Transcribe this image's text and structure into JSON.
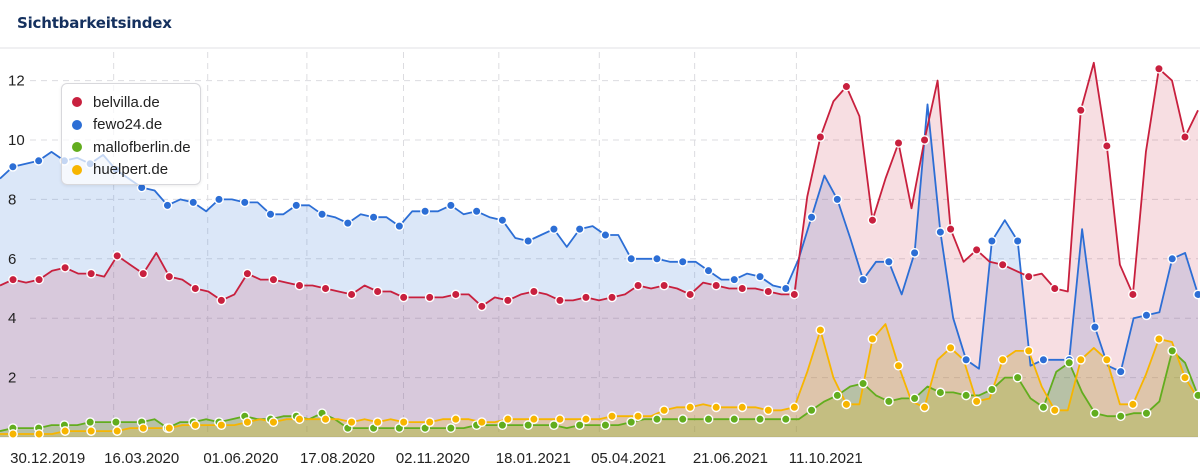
{
  "header": {
    "title": "Sichtbarkeitsindex"
  },
  "legend": {
    "items": [
      {
        "label": "belvilla.de",
        "color": "#c8203e"
      },
      {
        "label": "fewo24.de",
        "color": "#2c6ed5"
      },
      {
        "label": "mallofberlin.de",
        "color": "#62ad1e"
      },
      {
        "label": "huelpert.de",
        "color": "#f7b500"
      }
    ]
  },
  "chart_data": {
    "type": "area",
    "title": "Sichtbarkeitsindex",
    "xlabel": "",
    "ylabel": "",
    "ylim": [
      0,
      12.6
    ],
    "yticks": [
      2,
      4,
      6,
      8,
      10,
      12
    ],
    "x_tick_labels": [
      "30.12.2019",
      "16.03.2020",
      "01.06.2020",
      "17.08.2020",
      "02.11.2020",
      "18.01.2021",
      "05.04.2021",
      "21.06.2021",
      "11.10.2021"
    ],
    "x_tick_index": [
      3.7,
      11.0,
      18.7,
      26.2,
      33.6,
      41.4,
      48.8,
      56.7,
      64.1
    ],
    "grid": true,
    "legend_position": "top-left",
    "series": [
      {
        "name": "fewo24.de",
        "color": "#2c6ed5",
        "values": [
          8.7,
          9.1,
          9.2,
          9.3,
          9.6,
          9.3,
          9.4,
          9.2,
          9.5,
          9.0,
          8.7,
          8.4,
          8.3,
          7.8,
          8.0,
          7.9,
          7.6,
          8.0,
          8.0,
          7.9,
          7.9,
          7.5,
          7.5,
          7.8,
          7.8,
          7.5,
          7.4,
          7.2,
          7.5,
          7.4,
          7.4,
          7.1,
          7.6,
          7.6,
          7.6,
          7.8,
          7.5,
          7.6,
          7.4,
          7.3,
          6.7,
          6.6,
          6.8,
          7.0,
          6.4,
          7.0,
          7.1,
          6.8,
          6.8,
          6.0,
          6.0,
          6.0,
          5.9,
          5.9,
          5.9,
          5.6,
          5.3,
          5.3,
          5.5,
          5.4,
          5.1,
          5.0,
          6.0,
          7.4,
          8.8,
          8.0,
          6.7,
          5.3,
          5.9,
          5.9,
          4.8,
          6.2,
          11.2,
          6.9,
          4.0,
          2.6,
          2.3,
          6.6,
          7.3,
          6.6,
          2.4,
          2.6,
          2.6,
          2.6,
          7.0,
          3.7,
          2.4,
          2.2,
          4.0,
          4.1,
          4.2,
          6.0,
          6.2,
          4.8
        ]
      },
      {
        "name": "belvilla.de",
        "color": "#c8203e",
        "values": [
          5.1,
          5.3,
          5.2,
          5.3,
          5.6,
          5.7,
          5.5,
          5.5,
          5.4,
          6.1,
          5.8,
          5.5,
          6.2,
          5.4,
          5.3,
          5.0,
          4.9,
          4.6,
          4.8,
          5.5,
          5.3,
          5.3,
          5.2,
          5.1,
          5.1,
          5.0,
          4.9,
          4.8,
          5.1,
          4.9,
          4.9,
          4.7,
          4.7,
          4.7,
          4.7,
          4.8,
          4.8,
          4.4,
          4.7,
          4.6,
          4.8,
          4.9,
          4.8,
          4.6,
          4.6,
          4.7,
          4.6,
          4.7,
          4.8,
          5.1,
          5.0,
          5.1,
          5.0,
          4.8,
          5.2,
          5.1,
          5.0,
          5.0,
          5.0,
          4.9,
          4.8,
          4.8,
          8.1,
          10.1,
          11.3,
          11.8,
          10.8,
          7.3,
          8.7,
          9.9,
          7.7,
          10.0,
          12.0,
          7.0,
          5.9,
          6.3,
          5.9,
          5.8,
          5.6,
          5.4,
          5.5,
          5.0,
          4.9,
          11.0,
          12.6,
          9.8,
          5.8,
          4.8,
          9.6,
          12.4,
          12.0,
          10.1,
          11.0
        ]
      },
      {
        "name": "mallofberlin.de",
        "color": "#62ad1e",
        "values": [
          0.2,
          0.3,
          0.3,
          0.3,
          0.4,
          0.4,
          0.4,
          0.5,
          0.5,
          0.5,
          0.5,
          0.5,
          0.6,
          0.3,
          0.5,
          0.5,
          0.6,
          0.5,
          0.6,
          0.7,
          0.6,
          0.6,
          0.7,
          0.7,
          0.6,
          0.8,
          0.6,
          0.3,
          0.3,
          0.3,
          0.3,
          0.3,
          0.3,
          0.3,
          0.3,
          0.3,
          0.3,
          0.4,
          0.4,
          0.4,
          0.4,
          0.4,
          0.4,
          0.4,
          0.3,
          0.4,
          0.4,
          0.4,
          0.4,
          0.5,
          0.6,
          0.6,
          0.6,
          0.6,
          0.6,
          0.6,
          0.6,
          0.6,
          0.6,
          0.6,
          0.6,
          0.6,
          0.6,
          0.9,
          1.2,
          1.4,
          1.7,
          1.8,
          1.4,
          1.2,
          1.3,
          1.3,
          1.7,
          1.5,
          1.5,
          1.4,
          1.4,
          1.6,
          2.0,
          2.0,
          1.3,
          1.0,
          2.2,
          2.5,
          1.5,
          0.8,
          0.7,
          0.7,
          0.8,
          0.8,
          1.2,
          2.9,
          2.5,
          1.4
        ]
      },
      {
        "name": "huelpert.de",
        "color": "#f7b500",
        "values": [
          0.1,
          0.1,
          0.1,
          0.1,
          0.1,
          0.2,
          0.2,
          0.2,
          0.2,
          0.2,
          0.3,
          0.3,
          0.3,
          0.3,
          0.4,
          0.4,
          0.4,
          0.4,
          0.4,
          0.5,
          0.6,
          0.5,
          0.6,
          0.6,
          0.6,
          0.6,
          0.6,
          0.5,
          0.6,
          0.5,
          0.6,
          0.5,
          0.5,
          0.5,
          0.6,
          0.6,
          0.6,
          0.5,
          0.5,
          0.6,
          0.6,
          0.6,
          0.6,
          0.6,
          0.6,
          0.6,
          0.6,
          0.7,
          0.7,
          0.7,
          0.7,
          0.9,
          1.0,
          1.0,
          1.1,
          1.0,
          1.0,
          1.0,
          1.0,
          0.9,
          0.9,
          1.0,
          2.2,
          3.6,
          2.0,
          1.1,
          1.1,
          3.3,
          3.8,
          2.4,
          1.2,
          1.0,
          2.6,
          3.0,
          2.6,
          1.2,
          1.3,
          2.6,
          2.9,
          2.9,
          1.7,
          0.9,
          0.9,
          2.6,
          3.0,
          2.6,
          1.1,
          1.1,
          2.1,
          3.3,
          3.2,
          2.0,
          1.3
        ]
      }
    ]
  }
}
